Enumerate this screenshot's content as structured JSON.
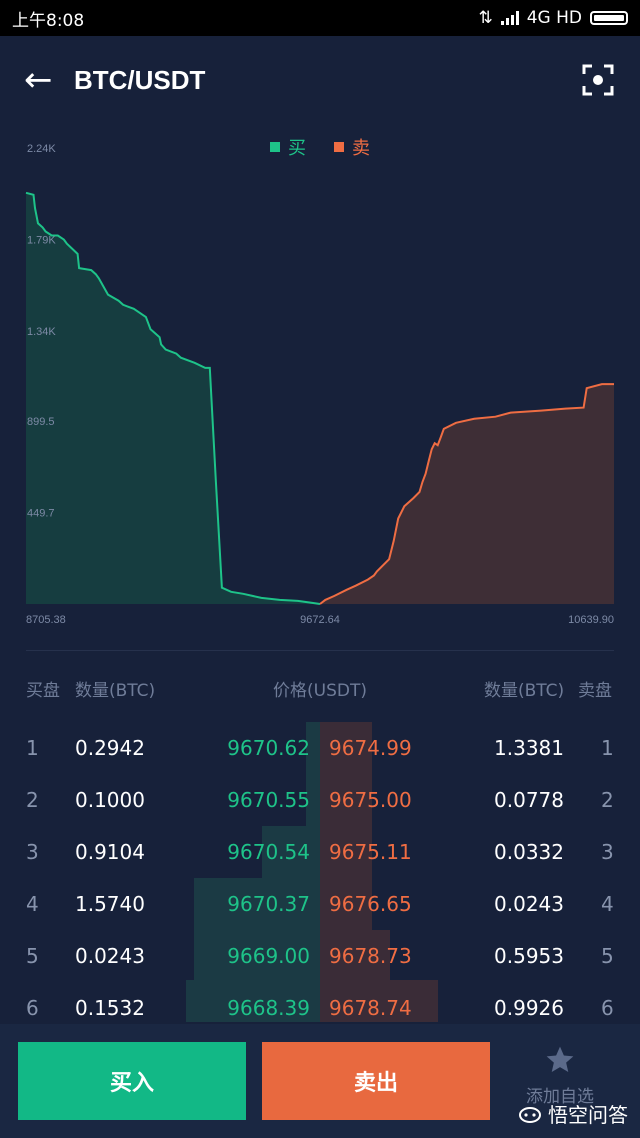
{
  "status_bar": {
    "time": "上午8:08",
    "network": "4G HD"
  },
  "header": {
    "title": "BTC/USDT",
    "back_icon": "arrow-left-icon",
    "action_icon": "fullscreen-icon"
  },
  "chart_data": {
    "type": "area",
    "legend": [
      {
        "label": "买",
        "color": "#1ec389"
      },
      {
        "label": "卖",
        "color": "#ef6d43"
      }
    ],
    "y_tick_labels": [
      "2.24K",
      "1.79K",
      "1.34K",
      "899.5",
      "449.7"
    ],
    "y_ticks": [
      2240,
      1790,
      1340,
      899.5,
      449.7
    ],
    "x_tick_labels": [
      "8705.38",
      "9672.64",
      "10639.90"
    ],
    "xlim": [
      8705.38,
      10639.9
    ],
    "ylim": [
      0,
      2240
    ],
    "series": [
      {
        "name": "买",
        "color": "#1ec389",
        "points": [
          [
            8705.38,
            2020
          ],
          [
            8730,
            2010
          ],
          [
            8735,
            1945
          ],
          [
            8745,
            1870
          ],
          [
            8760,
            1850
          ],
          [
            8770,
            1830
          ],
          [
            8790,
            1810
          ],
          [
            8810,
            1810
          ],
          [
            8830,
            1790
          ],
          [
            8840,
            1770
          ],
          [
            8875,
            1720
          ],
          [
            8880,
            1650
          ],
          [
            8920,
            1640
          ],
          [
            8935,
            1620
          ],
          [
            8945,
            1600
          ],
          [
            8975,
            1520
          ],
          [
            9010,
            1490
          ],
          [
            9025,
            1470
          ],
          [
            9060,
            1450
          ],
          [
            9080,
            1430
          ],
          [
            9100,
            1410
          ],
          [
            9115,
            1350
          ],
          [
            9130,
            1330
          ],
          [
            9145,
            1310
          ],
          [
            9150,
            1275
          ],
          [
            9165,
            1250
          ],
          [
            9200,
            1230
          ],
          [
            9215,
            1210
          ],
          [
            9260,
            1185
          ],
          [
            9295,
            1160
          ],
          [
            9310,
            1160
          ],
          [
            9330,
            600
          ],
          [
            9350,
            80
          ],
          [
            9380,
            60
          ],
          [
            9420,
            50
          ],
          [
            9480,
            30
          ],
          [
            9540,
            20
          ],
          [
            9600,
            15
          ],
          [
            9650,
            5
          ],
          [
            9672.64,
            0
          ]
        ]
      },
      {
        "name": "卖",
        "color": "#ef6d43",
        "points": [
          [
            9672.64,
            0
          ],
          [
            9690,
            20
          ],
          [
            9720,
            40
          ],
          [
            9760,
            70
          ],
          [
            9790,
            90
          ],
          [
            9830,
            120
          ],
          [
            9850,
            140
          ],
          [
            9860,
            160
          ],
          [
            9880,
            190
          ],
          [
            9900,
            220
          ],
          [
            9915,
            310
          ],
          [
            9930,
            420
          ],
          [
            9950,
            480
          ],
          [
            9980,
            520
          ],
          [
            10000,
            550
          ],
          [
            10010,
            600
          ],
          [
            10020,
            640
          ],
          [
            10030,
            700
          ],
          [
            10040,
            760
          ],
          [
            10050,
            790
          ],
          [
            10060,
            780
          ],
          [
            10070,
            820
          ],
          [
            10080,
            860
          ],
          [
            10120,
            890
          ],
          [
            10180,
            910
          ],
          [
            10250,
            920
          ],
          [
            10300,
            940
          ],
          [
            10400,
            950
          ],
          [
            10480,
            960
          ],
          [
            10540,
            965
          ],
          [
            10550,
            1060
          ],
          [
            10600,
            1080
          ],
          [
            10639.9,
            1080
          ]
        ]
      }
    ]
  },
  "orderbook": {
    "headers": {
      "bid_side": "买盘",
      "bid_qty": "数量(BTC)",
      "price": "价格(USDT)",
      "ask_qty": "数量(BTC)",
      "ask_side": "卖盘"
    },
    "rows": [
      {
        "index": "1",
        "bid_qty": "0.2942",
        "bid_price": "9670.62",
        "ask_price": "9674.99",
        "ask_qty": "1.3381",
        "ask_index": "1"
      },
      {
        "index": "2",
        "bid_qty": "0.1000",
        "bid_price": "9670.55",
        "ask_price": "9675.00",
        "ask_qty": "0.0778",
        "ask_index": "2"
      },
      {
        "index": "3",
        "bid_qty": "0.9104",
        "bid_price": "9670.54",
        "ask_price": "9675.11",
        "ask_qty": "0.0332",
        "ask_index": "3"
      },
      {
        "index": "4",
        "bid_qty": "1.5740",
        "bid_price": "9670.37",
        "ask_price": "9676.65",
        "ask_qty": "0.0243",
        "ask_index": "4"
      },
      {
        "index": "5",
        "bid_qty": "0.0243",
        "bid_price": "9669.00",
        "ask_price": "9678.73",
        "ask_qty": "0.5953",
        "ask_index": "5"
      },
      {
        "index": "6",
        "bid_qty": "0.1532",
        "bid_price": "9668.39",
        "ask_price": "9678.74",
        "ask_qty": "0.9926",
        "ask_index": "6"
      }
    ]
  },
  "bottom_bar": {
    "buy_label": "买入",
    "sell_label": "卖出",
    "watchlist_label": "添加自选",
    "watchlist_icon": "star-icon"
  },
  "watermark": {
    "text": "悟空问答"
  },
  "colors": {
    "buy": "#1ec389",
    "sell": "#ef6d43",
    "background": "#17213a"
  }
}
